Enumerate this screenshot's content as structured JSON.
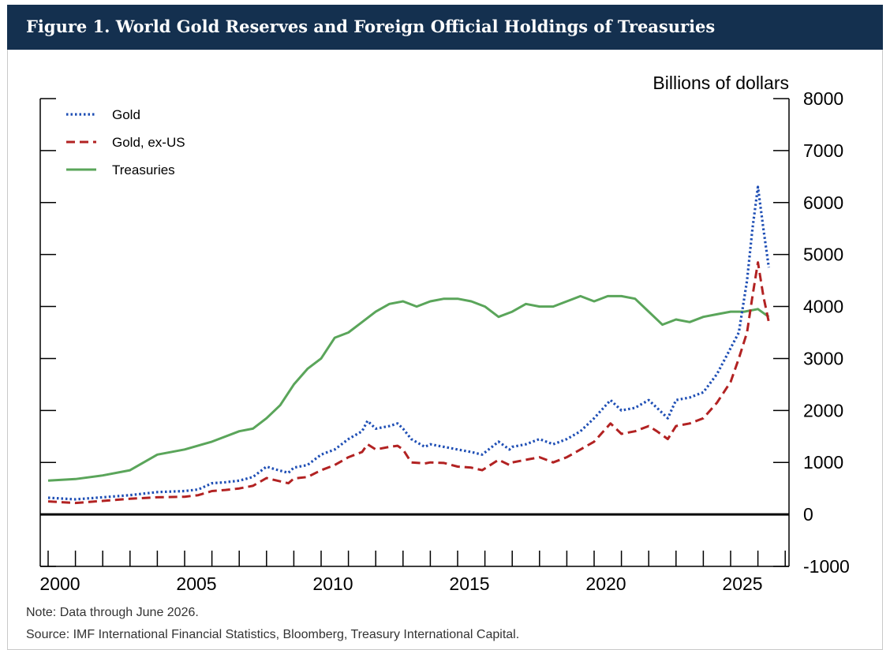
{
  "header": {
    "title": "Figure 1. World Gold Reserves and Foreign Official Holdings of Treasuries"
  },
  "notes": {
    "note": "Note: Data through June 2026.",
    "source": "Source: IMF International Financial Statistics, Bloomberg, Treasury International Capital."
  },
  "colors": {
    "header_bg": "#14304f",
    "gold": "#1f4fb5",
    "gold_ex_us": "#b22222",
    "treasuries": "#5aa55a"
  },
  "chart_data": {
    "type": "line",
    "ylabel": "Billions of dollars",
    "ylim": [
      -1000,
      8000
    ],
    "yticks": [
      -1000,
      0,
      1000,
      2000,
      3000,
      4000,
      5000,
      6000,
      7000,
      8000
    ],
    "ytick_labels": [
      "-1000",
      "0",
      "1000",
      "2000",
      "3000",
      "4000",
      "5000",
      "6000",
      "7000",
      "8000"
    ],
    "xlim": [
      2000,
      2027
    ],
    "xticks": [
      2000,
      2005,
      2010,
      2015,
      2020,
      2025
    ],
    "xtick_labels": [
      "2000",
      "2005",
      "2010",
      "2015",
      "2020",
      "2025"
    ],
    "grid": false,
    "legend_position": "top-left",
    "series": [
      {
        "name": "Gold",
        "style": "dotted",
        "color": "#1f4fb5",
        "points": [
          [
            2000.0,
            320
          ],
          [
            2001.0,
            290
          ],
          [
            2002.0,
            330
          ],
          [
            2003.0,
            370
          ],
          [
            2004.0,
            430
          ],
          [
            2005.0,
            450
          ],
          [
            2005.5,
            480
          ],
          [
            2006.0,
            600
          ],
          [
            2006.5,
            620
          ],
          [
            2007.0,
            650
          ],
          [
            2007.5,
            720
          ],
          [
            2008.0,
            920
          ],
          [
            2008.3,
            870
          ],
          [
            2008.8,
            800
          ],
          [
            2009.0,
            900
          ],
          [
            2009.5,
            950
          ],
          [
            2010.0,
            1150
          ],
          [
            2010.5,
            1250
          ],
          [
            2011.0,
            1450
          ],
          [
            2011.5,
            1600
          ],
          [
            2011.7,
            1800
          ],
          [
            2012.0,
            1650
          ],
          [
            2012.5,
            1700
          ],
          [
            2012.8,
            1750
          ],
          [
            2013.0,
            1650
          ],
          [
            2013.3,
            1450
          ],
          [
            2013.8,
            1300
          ],
          [
            2014.0,
            1350
          ],
          [
            2014.5,
            1300
          ],
          [
            2015.0,
            1250
          ],
          [
            2015.5,
            1200
          ],
          [
            2015.9,
            1150
          ],
          [
            2016.5,
            1400
          ],
          [
            2016.9,
            1250
          ],
          [
            2017.0,
            1300
          ],
          [
            2017.5,
            1350
          ],
          [
            2018.0,
            1450
          ],
          [
            2018.5,
            1350
          ],
          [
            2019.0,
            1450
          ],
          [
            2019.5,
            1600
          ],
          [
            2020.0,
            1850
          ],
          [
            2020.6,
            2200
          ],
          [
            2021.0,
            2000
          ],
          [
            2021.5,
            2050
          ],
          [
            2022.0,
            2200
          ],
          [
            2022.3,
            2050
          ],
          [
            2022.7,
            1850
          ],
          [
            2023.0,
            2200
          ],
          [
            2023.5,
            2250
          ],
          [
            2024.0,
            2350
          ],
          [
            2024.5,
            2700
          ],
          [
            2025.0,
            3200
          ],
          [
            2025.3,
            3500
          ],
          [
            2025.6,
            4500
          ],
          [
            2025.8,
            5500
          ],
          [
            2026.0,
            6300
          ],
          [
            2026.2,
            5500
          ],
          [
            2026.4,
            4750
          ]
        ]
      },
      {
        "name": "Gold, ex-US",
        "style": "dashed",
        "color": "#b22222",
        "points": [
          [
            2000.0,
            250
          ],
          [
            2001.0,
            220
          ],
          [
            2002.0,
            260
          ],
          [
            2003.0,
            300
          ],
          [
            2004.0,
            330
          ],
          [
            2005.0,
            340
          ],
          [
            2005.5,
            370
          ],
          [
            2006.0,
            450
          ],
          [
            2006.5,
            470
          ],
          [
            2007.0,
            500
          ],
          [
            2007.5,
            550
          ],
          [
            2008.0,
            700
          ],
          [
            2008.3,
            660
          ],
          [
            2008.8,
            600
          ],
          [
            2009.0,
            690
          ],
          [
            2009.5,
            720
          ],
          [
            2010.0,
            850
          ],
          [
            2010.5,
            950
          ],
          [
            2011.0,
            1100
          ],
          [
            2011.5,
            1200
          ],
          [
            2011.7,
            1350
          ],
          [
            2012.0,
            1250
          ],
          [
            2012.5,
            1300
          ],
          [
            2012.8,
            1320
          ],
          [
            2013.0,
            1250
          ],
          [
            2013.3,
            1000
          ],
          [
            2013.8,
            980
          ],
          [
            2014.0,
            1000
          ],
          [
            2014.5,
            990
          ],
          [
            2015.0,
            920
          ],
          [
            2015.5,
            900
          ],
          [
            2015.9,
            850
          ],
          [
            2016.5,
            1050
          ],
          [
            2016.9,
            950
          ],
          [
            2017.0,
            1000
          ],
          [
            2017.5,
            1050
          ],
          [
            2018.0,
            1100
          ],
          [
            2018.5,
            1000
          ],
          [
            2019.0,
            1100
          ],
          [
            2019.5,
            1250
          ],
          [
            2020.0,
            1400
          ],
          [
            2020.6,
            1750
          ],
          [
            2021.0,
            1550
          ],
          [
            2021.5,
            1600
          ],
          [
            2022.0,
            1700
          ],
          [
            2022.3,
            1600
          ],
          [
            2022.7,
            1450
          ],
          [
            2023.0,
            1700
          ],
          [
            2023.5,
            1750
          ],
          [
            2024.0,
            1850
          ],
          [
            2024.5,
            2150
          ],
          [
            2025.0,
            2550
          ],
          [
            2025.3,
            3000
          ],
          [
            2025.6,
            3500
          ],
          [
            2025.8,
            4200
          ],
          [
            2026.0,
            4850
          ],
          [
            2026.2,
            4200
          ],
          [
            2026.4,
            3700
          ]
        ]
      },
      {
        "name": "Treasuries",
        "style": "solid",
        "color": "#5aa55a",
        "points": [
          [
            2000.0,
            650
          ],
          [
            2001.0,
            680
          ],
          [
            2002.0,
            750
          ],
          [
            2003.0,
            850
          ],
          [
            2004.0,
            1150
          ],
          [
            2005.0,
            1250
          ],
          [
            2006.0,
            1400
          ],
          [
            2007.0,
            1600
          ],
          [
            2007.5,
            1650
          ],
          [
            2008.0,
            1850
          ],
          [
            2008.5,
            2100
          ],
          [
            2009.0,
            2500
          ],
          [
            2009.5,
            2800
          ],
          [
            2010.0,
            3000
          ],
          [
            2010.5,
            3400
          ],
          [
            2011.0,
            3500
          ],
          [
            2011.5,
            3700
          ],
          [
            2012.0,
            3900
          ],
          [
            2012.5,
            4050
          ],
          [
            2013.0,
            4100
          ],
          [
            2013.5,
            4000
          ],
          [
            2014.0,
            4100
          ],
          [
            2014.5,
            4150
          ],
          [
            2015.0,
            4150
          ],
          [
            2015.5,
            4100
          ],
          [
            2016.0,
            4000
          ],
          [
            2016.5,
            3800
          ],
          [
            2017.0,
            3900
          ],
          [
            2017.5,
            4050
          ],
          [
            2018.0,
            4000
          ],
          [
            2018.5,
            4000
          ],
          [
            2019.0,
            4100
          ],
          [
            2019.5,
            4200
          ],
          [
            2020.0,
            4100
          ],
          [
            2020.5,
            4200
          ],
          [
            2021.0,
            4200
          ],
          [
            2021.5,
            4150
          ],
          [
            2022.0,
            3900
          ],
          [
            2022.5,
            3650
          ],
          [
            2023.0,
            3750
          ],
          [
            2023.5,
            3700
          ],
          [
            2024.0,
            3800
          ],
          [
            2024.5,
            3850
          ],
          [
            2025.0,
            3900
          ],
          [
            2025.5,
            3900
          ],
          [
            2026.0,
            3950
          ],
          [
            2026.4,
            3800
          ]
        ]
      }
    ]
  }
}
